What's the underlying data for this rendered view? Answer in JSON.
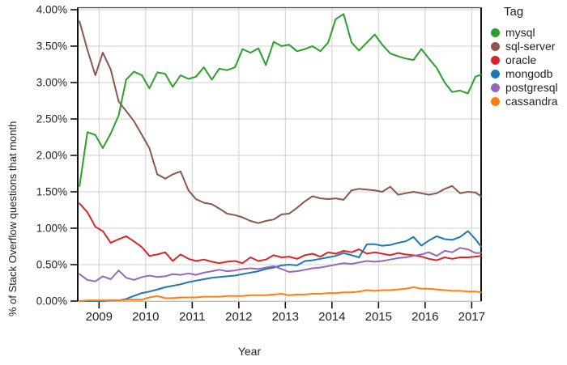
{
  "chart_data": {
    "type": "line",
    "title": "",
    "xlabel": "Year",
    "ylabel": "% of Stack Overflow questions that month",
    "legend_title": "Tag",
    "legend_position": "top-right",
    "grid": true,
    "xlim": [
      2008.56,
      2017.22
    ],
    "ylim": [
      0,
      4
    ],
    "x_ticks": [
      {
        "value": 2009,
        "label": "2009"
      },
      {
        "value": 2010,
        "label": "2010"
      },
      {
        "value": 2011,
        "label": "2011"
      },
      {
        "value": 2012,
        "label": "2012"
      },
      {
        "value": 2013,
        "label": "2013"
      },
      {
        "value": 2014,
        "label": "2014"
      },
      {
        "value": 2015,
        "label": "2015"
      },
      {
        "value": 2016,
        "label": "2016"
      },
      {
        "value": 2017,
        "label": "2017"
      }
    ],
    "y_ticks": [
      {
        "value": 4.0,
        "label": "4.00%"
      },
      {
        "value": 3.5,
        "label": "3.50%"
      },
      {
        "value": 3.0,
        "label": "3.00%"
      },
      {
        "value": 2.5,
        "label": "2.50%"
      },
      {
        "value": 2.0,
        "label": "2.00%"
      },
      {
        "value": 1.5,
        "label": "1.50%"
      },
      {
        "value": 1.0,
        "label": "1.00%"
      },
      {
        "value": 0.5,
        "label": "0.50%"
      },
      {
        "value": 0.0,
        "label": "0.00%"
      }
    ],
    "x": [
      2008.58,
      2008.75,
      2008.92,
      2009.08,
      2009.25,
      2009.42,
      2009.58,
      2009.75,
      2009.92,
      2010.08,
      2010.25,
      2010.42,
      2010.58,
      2010.75,
      2010.92,
      2011.08,
      2011.25,
      2011.42,
      2011.58,
      2011.75,
      2011.92,
      2012.08,
      2012.25,
      2012.42,
      2012.58,
      2012.75,
      2012.92,
      2013.08,
      2013.25,
      2013.42,
      2013.58,
      2013.75,
      2013.92,
      2014.08,
      2014.25,
      2014.42,
      2014.58,
      2014.75,
      2014.92,
      2015.08,
      2015.25,
      2015.42,
      2015.58,
      2015.75,
      2015.92,
      2016.08,
      2016.25,
      2016.42,
      2016.58,
      2016.75,
      2016.92,
      2017.08,
      2017.2
    ],
    "series": [
      {
        "name": "mysql",
        "color": "#2ca02c",
        "values": [
          1.58,
          2.32,
          2.28,
          2.1,
          2.3,
          2.55,
          3.04,
          3.15,
          3.1,
          2.92,
          3.14,
          3.12,
          2.94,
          3.1,
          3.05,
          3.08,
          3.21,
          3.04,
          3.19,
          3.17,
          3.21,
          3.46,
          3.41,
          3.47,
          3.24,
          3.56,
          3.5,
          3.52,
          3.43,
          3.46,
          3.5,
          3.43,
          3.55,
          3.87,
          3.94,
          3.55,
          3.44,
          3.55,
          3.66,
          3.52,
          3.4,
          3.36,
          3.33,
          3.31,
          3.46,
          3.33,
          3.2,
          3.0,
          2.87,
          2.89,
          2.85,
          3.08,
          3.11
        ]
      },
      {
        "name": "sql-server",
        "color": "#8c564b",
        "values": [
          3.84,
          3.45,
          3.1,
          3.41,
          3.18,
          2.74,
          2.61,
          2.47,
          2.28,
          2.1,
          1.74,
          1.68,
          1.74,
          1.78,
          1.52,
          1.4,
          1.35,
          1.33,
          1.27,
          1.2,
          1.18,
          1.15,
          1.1,
          1.07,
          1.1,
          1.12,
          1.19,
          1.2,
          1.28,
          1.37,
          1.44,
          1.41,
          1.4,
          1.41,
          1.39,
          1.52,
          1.54,
          1.53,
          1.52,
          1.5,
          1.57,
          1.46,
          1.48,
          1.5,
          1.48,
          1.46,
          1.48,
          1.54,
          1.58,
          1.48,
          1.5,
          1.49,
          1.44
        ]
      },
      {
        "name": "oracle",
        "color": "#d62728",
        "values": [
          1.34,
          1.22,
          1.02,
          0.96,
          0.8,
          0.85,
          0.89,
          0.82,
          0.74,
          0.62,
          0.64,
          0.67,
          0.55,
          0.64,
          0.58,
          0.55,
          0.57,
          0.54,
          0.52,
          0.54,
          0.55,
          0.52,
          0.6,
          0.55,
          0.57,
          0.63,
          0.6,
          0.61,
          0.58,
          0.63,
          0.65,
          0.61,
          0.67,
          0.65,
          0.69,
          0.67,
          0.71,
          0.65,
          0.67,
          0.65,
          0.63,
          0.66,
          0.64,
          0.63,
          0.61,
          0.58,
          0.56,
          0.6,
          0.58,
          0.6,
          0.6,
          0.61,
          0.62
        ]
      },
      {
        "name": "mongodb",
        "color": "#1f77b4",
        "values": [
          0.0,
          0.0,
          0.0,
          0.0,
          0.01,
          0.01,
          0.03,
          0.07,
          0.11,
          0.13,
          0.16,
          0.19,
          0.21,
          0.23,
          0.26,
          0.28,
          0.3,
          0.32,
          0.33,
          0.34,
          0.35,
          0.37,
          0.39,
          0.41,
          0.44,
          0.46,
          0.49,
          0.5,
          0.49,
          0.55,
          0.56,
          0.58,
          0.6,
          0.62,
          0.66,
          0.63,
          0.6,
          0.78,
          0.78,
          0.76,
          0.77,
          0.8,
          0.82,
          0.88,
          0.76,
          0.83,
          0.89,
          0.85,
          0.84,
          0.88,
          0.96,
          0.85,
          0.75
        ]
      },
      {
        "name": "postgresql",
        "color": "#9467bd",
        "values": [
          0.37,
          0.29,
          0.27,
          0.34,
          0.3,
          0.42,
          0.32,
          0.29,
          0.33,
          0.35,
          0.33,
          0.34,
          0.37,
          0.36,
          0.38,
          0.36,
          0.39,
          0.41,
          0.43,
          0.41,
          0.42,
          0.44,
          0.45,
          0.44,
          0.46,
          0.48,
          0.44,
          0.4,
          0.41,
          0.43,
          0.45,
          0.46,
          0.48,
          0.5,
          0.52,
          0.51,
          0.53,
          0.55,
          0.54,
          0.55,
          0.57,
          0.59,
          0.6,
          0.62,
          0.64,
          0.67,
          0.62,
          0.69,
          0.67,
          0.73,
          0.71,
          0.66,
          0.66
        ]
      },
      {
        "name": "cassandra",
        "color": "#ff7f0e",
        "values": [
          0.0,
          0.01,
          0.01,
          0.01,
          0.01,
          0.01,
          0.02,
          0.02,
          0.02,
          0.05,
          0.07,
          0.04,
          0.04,
          0.05,
          0.05,
          0.05,
          0.06,
          0.06,
          0.06,
          0.07,
          0.07,
          0.07,
          0.08,
          0.08,
          0.08,
          0.09,
          0.1,
          0.08,
          0.09,
          0.09,
          0.1,
          0.1,
          0.11,
          0.11,
          0.12,
          0.12,
          0.13,
          0.15,
          0.14,
          0.15,
          0.15,
          0.16,
          0.17,
          0.19,
          0.17,
          0.17,
          0.16,
          0.15,
          0.14,
          0.14,
          0.13,
          0.13,
          0.12
        ]
      }
    ]
  }
}
